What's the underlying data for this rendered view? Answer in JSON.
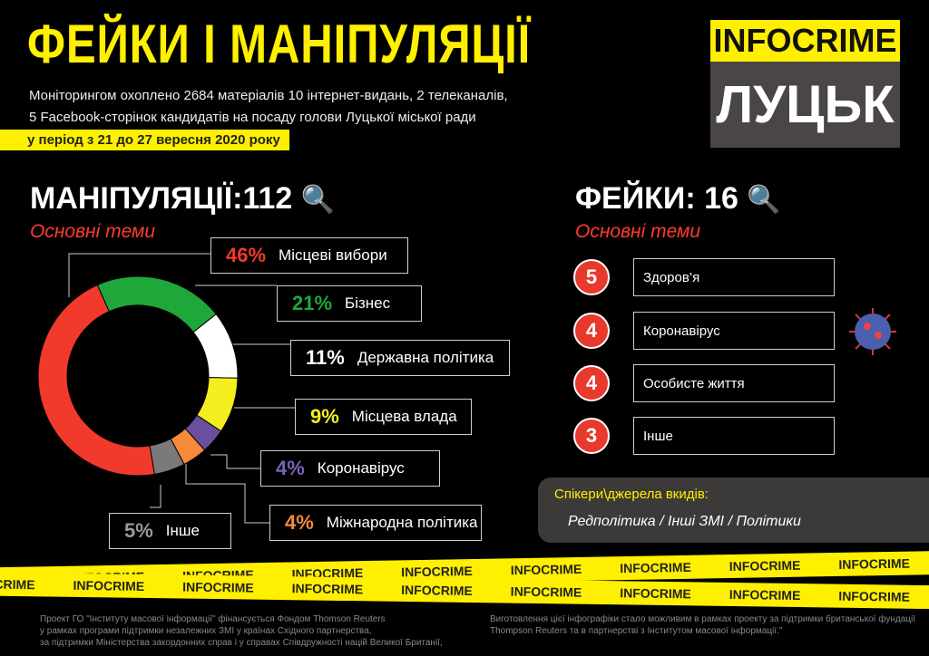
{
  "header": {
    "title": "ФЕЙКИ І МАНІПУЛЯЦІЇ",
    "subtitle_line1": "Моніторингом охоплено 2684 матеріалів 10 інтернет-видань, 2 телеканалів,",
    "subtitle_line2": "5 Facebook-сторінок кандидатів на посаду голови Луцької міської ради",
    "period": "у період  з 21 до 27 вересня 2020 року"
  },
  "logo": {
    "top": "INFOCRIME",
    "bottom": "ЛУЦЬК"
  },
  "manipulations": {
    "heading": "МАНІПУЛЯЦІЇ:112",
    "themes_label": "Основні теми",
    "icon": "magnifier-icon"
  },
  "fakes": {
    "heading": "ФЕЙКИ: 16",
    "themes_label": "Основні теми",
    "icon": "magnifier-icon",
    "items": [
      {
        "count": "5",
        "label": "Здоров’я"
      },
      {
        "count": "4",
        "label": "Коронавірус"
      },
      {
        "count": "4",
        "label": "Особисте життя"
      },
      {
        "count": "3",
        "label": "Інше"
      }
    ]
  },
  "speakers": {
    "label": "Спікери\\джерела вкидів:",
    "value": "Редполітика / Інші ЗМІ / Політики"
  },
  "tape_text": "INFOCRIME",
  "footer": {
    "left": [
      "Проект ГО \"Інституту масової інформації\" фінансується Фондом Thomson Reuters",
      "у рамках програми підтримки незалежних ЗМІ у країнах Східного партнерства,",
      "за підтримки Міністерства закордонних справ і у справах Співдружності націй Великої Британії,"
    ],
    "right": [
      "Виготовлення цієї інфографіки стало можливим в рамках проекту за підтримки британської фундації",
      "Thompson Reuters та в партнерстві з Інститутом масової інформації.\""
    ]
  },
  "chart_data": {
    "type": "pie",
    "donut": true,
    "categories": [
      "Місцеві вибори",
      "Бізнес",
      "Державна політика",
      "Місцева влада",
      "Коронавірус",
      "Міжнародна політика",
      "Інше"
    ],
    "values": [
      46,
      21,
      11,
      9,
      4,
      4,
      5
    ],
    "labels": [
      "46%",
      "21%",
      "11%",
      "9%",
      "4%",
      "4%",
      "5%"
    ],
    "colors": [
      "#f23a2c",
      "#1fa83a",
      "#ffffff",
      "#f5ee1e",
      "#6a4fa0",
      "#f58a3c",
      "#7a7a7a"
    ],
    "label_colors": [
      "#f23a2c",
      "#1fa83a",
      "#ffffff",
      "#f5ee1e",
      "#7a62b8",
      "#f58a3c",
      "#999999"
    ]
  }
}
